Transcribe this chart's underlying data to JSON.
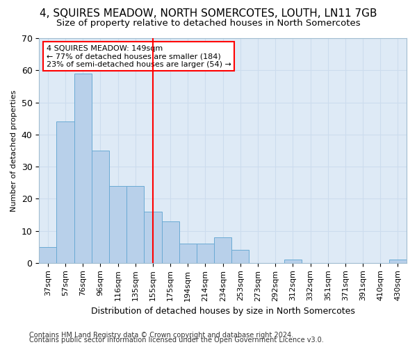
{
  "title1": "4, SQUIRES MEADOW, NORTH SOMERCOTES, LOUTH, LN11 7GB",
  "title2": "Size of property relative to detached houses in North Somercotes",
  "xlabel": "Distribution of detached houses by size in North Somercotes",
  "ylabel": "Number of detached properties",
  "footnote1": "Contains HM Land Registry data © Crown copyright and database right 2024.",
  "footnote2": "Contains public sector information licensed under the Open Government Licence v3.0.",
  "categories": [
    "37sqm",
    "57sqm",
    "76sqm",
    "96sqm",
    "116sqm",
    "135sqm",
    "155sqm",
    "175sqm",
    "194sqm",
    "214sqm",
    "234sqm",
    "253sqm",
    "273sqm",
    "292sqm",
    "312sqm",
    "332sqm",
    "351sqm",
    "371sqm",
    "391sqm",
    "410sqm",
    "430sqm"
  ],
  "values": [
    5,
    44,
    59,
    35,
    24,
    24,
    16,
    13,
    6,
    6,
    8,
    4,
    0,
    0,
    1,
    0,
    0,
    0,
    0,
    0,
    1
  ],
  "bar_color": "#b8d0ea",
  "bar_edge_color": "#6aaad4",
  "grid_color": "#ccdcee",
  "bg_color": "#deeaf6",
  "vline_x_idx": 6,
  "vline_color": "red",
  "annotation_line1": "4 SQUIRES MEADOW: 149sqm",
  "annotation_line2": "← 77% of detached houses are smaller (184)",
  "annotation_line3": "23% of semi-detached houses are larger (54) →",
  "annotation_box_color": "white",
  "annotation_box_edge": "red",
  "ylim": [
    0,
    70
  ],
  "yticks": [
    0,
    10,
    20,
    30,
    40,
    50,
    60,
    70
  ],
  "title1_fontsize": 11,
  "title2_fontsize": 9.5,
  "xlabel_fontsize": 9,
  "ylabel_fontsize": 8,
  "tick_fontsize": 8,
  "annot_fontsize": 8,
  "footnote_fontsize": 7
}
